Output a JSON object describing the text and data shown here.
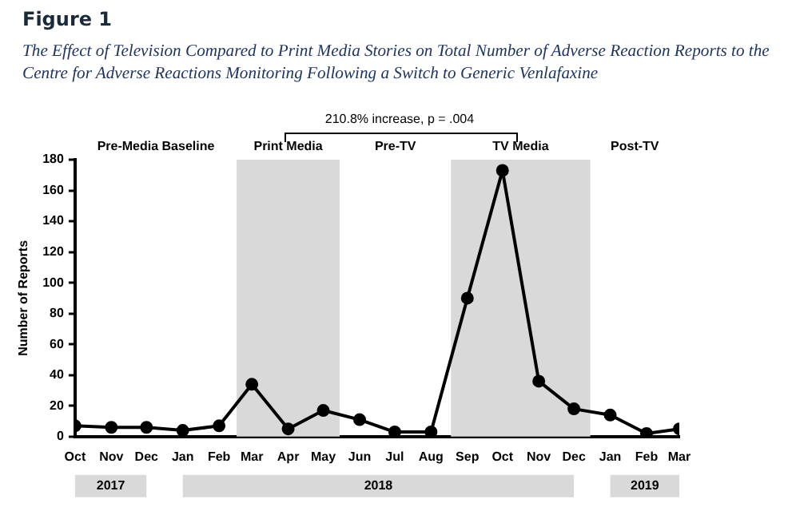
{
  "chart_data": {
    "type": "line",
    "title": "Figure 1",
    "subtitle": "The Effect of Television Compared to Print Media Stories on Total Number of Adverse Reaction Reports to the Centre for Adverse Reactions Monitoring Following a Switch to Generic Venlafaxine",
    "ylabel": "Number of Reports",
    "x": [
      "2017-10",
      "2017-11",
      "2017-12",
      "2018-01",
      "2018-02",
      "2018-03",
      "2018-04",
      "2018-05",
      "2018-06",
      "2018-07",
      "2018-08",
      "2018-09",
      "2018-10",
      "2018-11",
      "2018-12",
      "2019-01",
      "2019-02",
      "2019-03"
    ],
    "series": [
      {
        "color": "#000000",
        "values": [
          7,
          6,
          6,
          4,
          7,
          34,
          5,
          17,
          11,
          3,
          3,
          90,
          173,
          36,
          18,
          14,
          2,
          5
        ]
      }
    ],
    "xlim": [
      "2017-10",
      "2019-03"
    ],
    "xticks": [
      {
        "value": "2017-10",
        "label": "Oct"
      },
      {
        "value": "2017-11",
        "label": "Nov"
      },
      {
        "value": "2017-12",
        "label": "Dec"
      },
      {
        "value": "2018-01",
        "label": "Jan"
      },
      {
        "value": "2018-02",
        "label": "Feb"
      },
      {
        "value": "2018-03",
        "label": "Mar"
      },
      {
        "value": "2018-04",
        "label": "Apr"
      },
      {
        "value": "2018-05",
        "label": "May"
      },
      {
        "value": "2018-06",
        "label": "Jun"
      },
      {
        "value": "2018-07",
        "label": "Jul"
      },
      {
        "value": "2018-08",
        "label": "Aug"
      },
      {
        "value": "2018-09",
        "label": "Sep"
      },
      {
        "value": "2018-10",
        "label": "Oct"
      },
      {
        "value": "2018-11",
        "label": "Nov"
      },
      {
        "value": "2018-12",
        "label": "Dec"
      },
      {
        "value": "2019-01",
        "label": "Jan"
      },
      {
        "value": "2019-02",
        "label": "Feb"
      },
      {
        "value": "2019-03",
        "label": "Mar"
      }
    ],
    "ylim": [
      0,
      180
    ],
    "yticks": [
      0,
      20,
      40,
      60,
      80,
      100,
      120,
      140,
      160,
      180
    ],
    "bands": [
      {
        "axis": "x",
        "from": "2018-02-16",
        "to": "2018-05-15",
        "label": "Print Media",
        "color": "#d9d9d9"
      },
      {
        "axis": "x",
        "from": "2018-08-18",
        "to": "2018-12-15",
        "label": "TV Media",
        "color": "#d9d9d9"
      }
    ],
    "annotations": [
      "Pre-Media Baseline",
      "Pre-TV",
      "Post-TV",
      "210.8% increase, p = .004",
      "2017",
      "2018",
      "2019"
    ],
    "marker": "circle",
    "line_style": "solid",
    "grid": false,
    "legend": false
  }
}
